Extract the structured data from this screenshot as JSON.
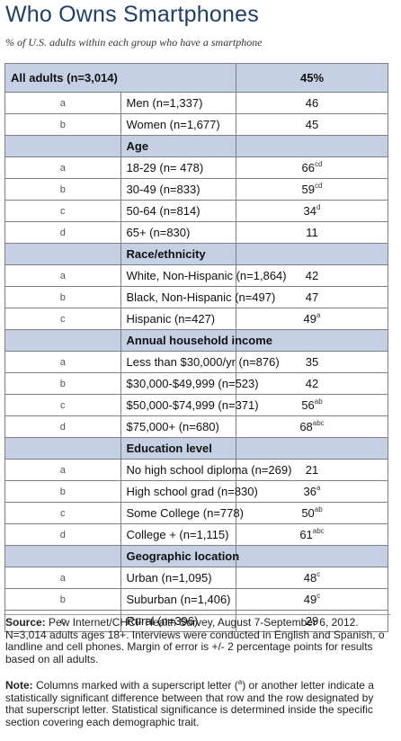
{
  "title": "Who Owns Smartphones",
  "subtitle": "% of U.S. adults within each group who have a smartphone",
  "total": {
    "label": "All adults (n=3,014)",
    "value": "45%"
  },
  "sections": [
    {
      "rows": [
        {
          "letter": "a",
          "label": "Men (n=1,337)",
          "value": "46",
          "sup": ""
        },
        {
          "letter": "b",
          "label": "Women (n=1,677)",
          "value": "45",
          "sup": ""
        }
      ]
    },
    {
      "header": "Age",
      "rows": [
        {
          "letter": "a",
          "label": "18-29 (n= 478)",
          "value": "66",
          "sup": "cd"
        },
        {
          "letter": "b",
          "label": "30-49 (n=833)",
          "value": "59",
          "sup": "cd"
        },
        {
          "letter": "c",
          "label": "50-64 (n=814)",
          "value": "34",
          "sup": "d"
        },
        {
          "letter": "d",
          "label": "65+ (n=830)",
          "value": "11",
          "sup": ""
        }
      ]
    },
    {
      "header": "Race/ethnicity",
      "rows": [
        {
          "letter": "a",
          "label": "White, Non-Hispanic (n=1,864)",
          "value": "42",
          "sup": ""
        },
        {
          "letter": "b",
          "label": "Black, Non-Hispanic (n=497)",
          "value": "47",
          "sup": ""
        },
        {
          "letter": "c",
          "label": "Hispanic (n=427)",
          "value": "49",
          "sup": "a"
        }
      ]
    },
    {
      "header": "Annual household income",
      "rows": [
        {
          "letter": "a",
          "label": "Less than $30,000/yr (n=876)",
          "value": "35",
          "sup": ""
        },
        {
          "letter": "b",
          "label": "$30,000-$49,999 (n=523)",
          "value": "42",
          "sup": ""
        },
        {
          "letter": "c",
          "label": "$50,000-$74,999 (n=371)",
          "value": "56",
          "sup": "ab"
        },
        {
          "letter": "d",
          "label": "$75,000+ (n=680)",
          "value": "68",
          "sup": "abc"
        }
      ]
    },
    {
      "header": "Education level",
      "rows": [
        {
          "letter": "a",
          "label": "No high school diploma (n=269)",
          "value": "21",
          "sup": ""
        },
        {
          "letter": "b",
          "label": "High school grad (n=830)",
          "value": "36",
          "sup": "a"
        },
        {
          "letter": "c",
          "label": "Some College (n=778)",
          "value": "50",
          "sup": "ab"
        },
        {
          "letter": "d",
          "label": "College + (n=1,115)",
          "value": "61",
          "sup": "abc"
        }
      ]
    },
    {
      "header": "Geographic location",
      "rows": [
        {
          "letter": "a",
          "label": "Urban (n=1,095)",
          "value": "48",
          "sup": "c"
        },
        {
          "letter": "b",
          "label": "Suburban (n=1,406)",
          "value": "49",
          "sup": "c"
        },
        {
          "letter": "c",
          "label": "Rural (n=396)",
          "value": "29",
          "sup": ""
        }
      ]
    }
  ],
  "source": {
    "label": "Source:",
    "line1": "Pew Internet/CHCF Health Survey, August 7-September 6, 2012.",
    "line2": "N=3,014 adults ages 18+. Interviews were conducted in English and Spanish, o",
    "line3": "landline and cell phones.  Margin of error is +/- 2 percentage points for results",
    "line4": "based on all adults."
  },
  "note": {
    "label": "Note:",
    "line1_a": "Columns marked with a superscript letter (",
    "line1_sup": "a",
    "line1_b": ") or another letter indicate a",
    "line2": "statistically significant difference between that row and the row designated by",
    "line3": "that superscript letter. Statistical significance is determined inside the specific",
    "line4": "section covering each demographic trait."
  },
  "colors": {
    "title": "#1f3f6a",
    "header_fill": "#c6d0e4",
    "border": "#7f7f7f"
  }
}
